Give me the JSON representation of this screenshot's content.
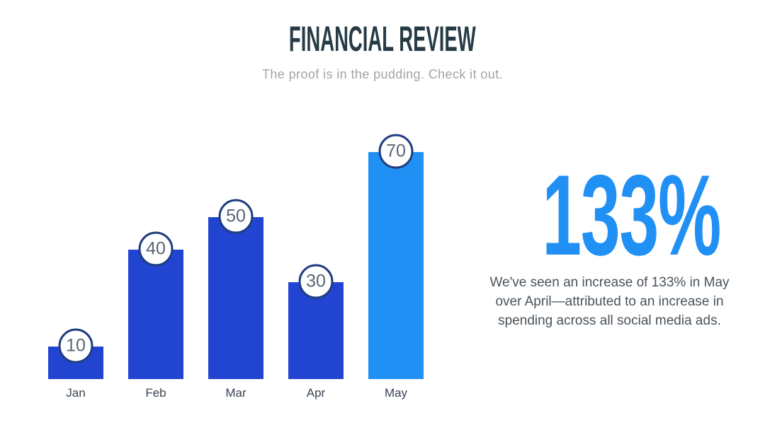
{
  "header": {
    "title": "FINANCIAL REVIEW",
    "subtitle": "The proof is in the pudding. Check it out."
  },
  "chart_data": {
    "type": "bar",
    "categories": [
      "Jan",
      "Feb",
      "Mar",
      "Apr",
      "May"
    ],
    "values": [
      10,
      40,
      50,
      30,
      70
    ],
    "title": "",
    "xlabel": "",
    "ylabel": "",
    "ylim": [
      0,
      75
    ],
    "grid": false,
    "legend": false,
    "value_label_style": "circled-bubble-at-bar-top",
    "highlight_index": 4,
    "bar_color": "#2245d1",
    "highlight_color": "#2190f5",
    "bubble_border_color": "#1f3d80",
    "bubble_fill_color": "#ffffff",
    "bubble_text_color": "#5a6578",
    "axis_label_color": "#3a4352"
  },
  "stat": {
    "value": "133%",
    "description": "We've seen an increase of 133% in May over April—attributed to an increase in spending across all social media ads.",
    "color": "#2190f5"
  },
  "colors": {
    "background": "#ffffff",
    "title": "#263b45",
    "subtitle": "#a4a4a4",
    "body_text": "#49525a"
  }
}
